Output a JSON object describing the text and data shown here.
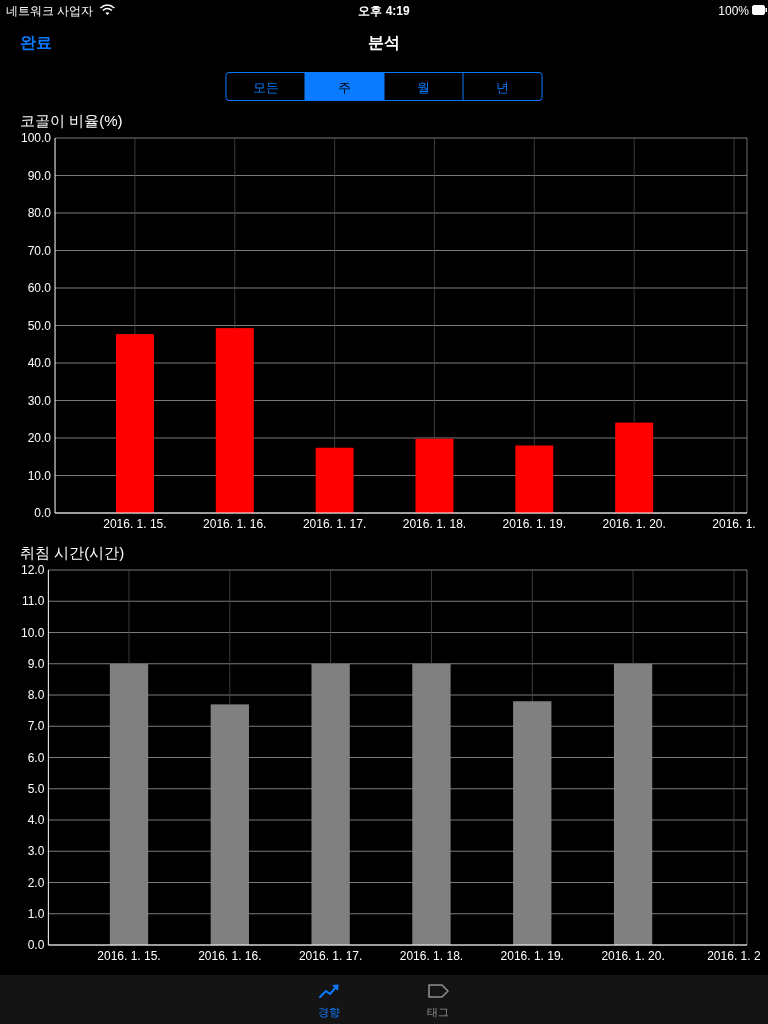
{
  "chart_data": [
    {
      "type": "other",
      "title": "분석",
      "annotations": [
        "네트워크 사업자",
        "오후 4:19",
        "100%",
        "완료",
        "모든",
        "주",
        "월",
        "년"
      ]
    },
    {
      "type": "bar",
      "title": "코골이 비율(%)",
      "categories": [
        "2016. 1. 15.",
        "2016. 1. 16.",
        "2016. 1. 17.",
        "2016. 1. 18.",
        "2016. 1. 19.",
        "2016. 1. 20.",
        "2016. 1."
      ],
      "values": [
        47.7,
        49.3,
        17.4,
        19.8,
        18.0,
        24.1,
        null
      ],
      "color": "#ff0000",
      "ylim": [
        0,
        100
      ],
      "yticks": [
        {
          "value": 0,
          "label": "0.0"
        },
        {
          "value": 10,
          "label": "10.0"
        },
        {
          "value": 20,
          "label": "20.0"
        },
        {
          "value": 30,
          "label": "30.0"
        },
        {
          "value": 40,
          "label": "40.0"
        },
        {
          "value": 50,
          "label": "50.0"
        },
        {
          "value": 60,
          "label": "60.0"
        },
        {
          "value": 70,
          "label": "70.0"
        },
        {
          "value": 80,
          "label": "80.0"
        },
        {
          "value": 90,
          "label": "90.0"
        },
        {
          "value": 100,
          "label": "100.0"
        }
      ],
      "grid": true
    },
    {
      "type": "bar",
      "title": "취침 시간(시간)",
      "categories": [
        "2016. 1. 15.",
        "2016. 1. 16.",
        "2016. 1. 17.",
        "2016. 1. 18.",
        "2016. 1. 19.",
        "2016. 1. 20.",
        "2016. 1. 2"
      ],
      "values": [
        9.0,
        7.7,
        9.0,
        9.0,
        7.8,
        9.0,
        null
      ],
      "color": "#808080",
      "ylim": [
        0,
        12
      ],
      "yticks": [
        {
          "value": 0,
          "label": "0.0"
        },
        {
          "value": 1,
          "label": "1.0"
        },
        {
          "value": 2,
          "label": "2.0"
        },
        {
          "value": 3,
          "label": "3.0"
        },
        {
          "value": 4,
          "label": "4.0"
        },
        {
          "value": 5,
          "label": "5.0"
        },
        {
          "value": 6,
          "label": "6.0"
        },
        {
          "value": 7,
          "label": "7.0"
        },
        {
          "value": 8,
          "label": "8.0"
        },
        {
          "value": 9,
          "label": "9.0"
        },
        {
          "value": 10,
          "label": "10.0"
        },
        {
          "value": 11,
          "label": "11.0"
        },
        {
          "value": 12,
          "label": "12.0"
        }
      ],
      "grid": true
    },
    {
      "type": "other",
      "annotations": [
        "경향",
        "태그"
      ]
    }
  ]
}
